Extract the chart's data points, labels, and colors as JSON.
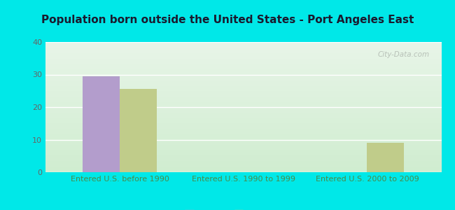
{
  "title": "Population born outside the United States - Port Angeles East",
  "categories": [
    "Entered U.S. before 1990",
    "Entered U.S. 1990 to 1999",
    "Entered U.S. 2000 to 2009"
  ],
  "native_values": [
    29.5,
    0,
    0
  ],
  "foreign_values": [
    25.5,
    0,
    9.0
  ],
  "native_color": "#b39dcc",
  "foreign_color": "#c0cc8a",
  "background_color": "#00e8e8",
  "plot_bg_top": "#e8f5e8",
  "plot_bg_bottom": "#d0edd0",
  "ylim": [
    0,
    40
  ],
  "yticks": [
    0,
    10,
    20,
    30,
    40
  ],
  "bar_width": 0.3,
  "title_fontsize": 11,
  "tick_fontsize": 8,
  "legend_fontsize": 9,
  "xtick_color": "#4a8a4a",
  "watermark_text": "City-Data.com"
}
